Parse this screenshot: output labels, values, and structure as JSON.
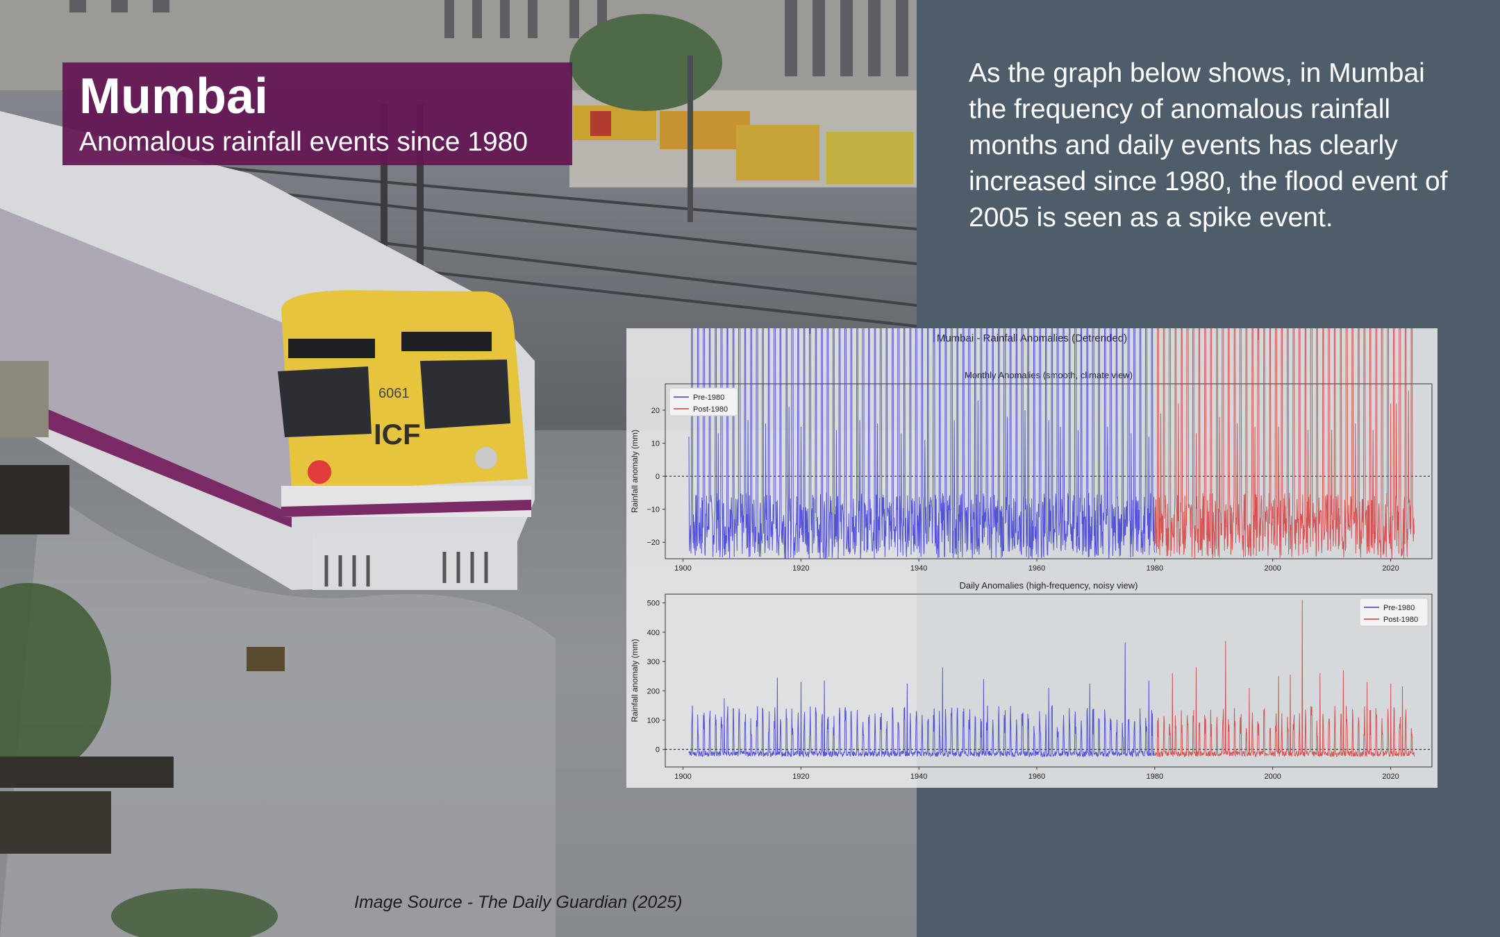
{
  "header": {
    "title": "Mumbai",
    "subtitle": "Anomalous rainfall events since 1980"
  },
  "description": "As the graph below shows, in Mumbai the frequency of anomalous rainfall months and daily events has clearly increased since 1980, the flood event of 2005 is seen as a spike event.",
  "photo": {
    "caption": "Image Source - The Daily Guardian (2025)",
    "train_number": "6061",
    "train_marking": "ICF"
  },
  "colors": {
    "title_bg": "#621652",
    "panel_bg": "#4f5d6b",
    "pre_1980": "#3b3bd6",
    "post_1980": "#d63b3b"
  },
  "chart_data": {
    "suptitle": "Mumbai - Rainfall Anomalies (Detrended)",
    "charts": [
      {
        "type": "line",
        "title": "Monthly Anomalies (smooth, climate view)",
        "ylabel": "Rainfall anomaly (mm)",
        "xlabel": "",
        "xlim": [
          1897,
          2027
        ],
        "ylim": [
          -25,
          28
        ],
        "xticks": [
          1900,
          1920,
          1940,
          1960,
          1980,
          2000,
          2020
        ],
        "yticks": [
          -20,
          -10,
          0,
          10,
          20
        ],
        "zero_line": "dashed",
        "legend": "top-left",
        "series": [
          {
            "name": "Pre-1980",
            "color": "#3b3bd6",
            "x": [
              1901,
              1906,
              1911,
              1914,
              1918,
              1920,
              1926,
              1930,
              1933,
              1937,
              1941,
              1946,
              1950,
              1955,
              1958,
              1962,
              1964,
              1967,
              1972,
              1976,
              1979
            ],
            "y": [
              12,
              13,
              17,
              16,
              21,
              15,
              14,
              17,
              16,
              13,
              11,
              17,
              23,
              18,
              20,
              17,
              15,
              14,
              15,
              13,
              12
            ]
          },
          {
            "name": "Post-1980",
            "color": "#d63b3b",
            "x": [
              1981,
              1984,
              1987,
              1991,
              1994,
              1997,
              2001,
              2003,
              2006,
              2010,
              2014,
              2017,
              2020,
              2021,
              2023
            ],
            "y": [
              19,
              22,
              13,
              18,
              16,
              15,
              15,
              -22,
              14,
              14,
              16,
              14,
              22,
              22,
              26
            ]
          }
        ]
      },
      {
        "type": "line",
        "title": "Daily Anomalies (high-frequency, noisy view)",
        "ylabel": "Rainfall anomaly (mm)",
        "xlabel": "",
        "xlim": [
          1897,
          2027
        ],
        "ylim": [
          -60,
          530
        ],
        "xticks": [
          1900,
          1920,
          1940,
          1960,
          1980,
          2000,
          2020
        ],
        "yticks": [
          0,
          100,
          200,
          300,
          400,
          500
        ],
        "zero_line": "dashed",
        "legend": "top-right",
        "series": [
          {
            "name": "Pre-1980",
            "color": "#3b3bd6",
            "x": [
              1907,
              1916,
              1920,
              1924,
              1938,
              1944,
              1951,
              1962,
              1969,
              1975,
              1979
            ],
            "y": [
              175,
              245,
              230,
              235,
              225,
              280,
              240,
              210,
              225,
              365,
              235
            ]
          },
          {
            "name": "Post-1980",
            "color": "#d63b3b",
            "x": [
              1983,
              1987,
              1992,
              1996,
              2001,
              2003,
              2005,
              2008,
              2012,
              2016,
              2020,
              2022
            ],
            "y": [
              260,
              280,
              370,
              210,
              250,
              255,
              510,
              260,
              270,
              230,
              225,
              215
            ]
          }
        ]
      }
    ]
  }
}
